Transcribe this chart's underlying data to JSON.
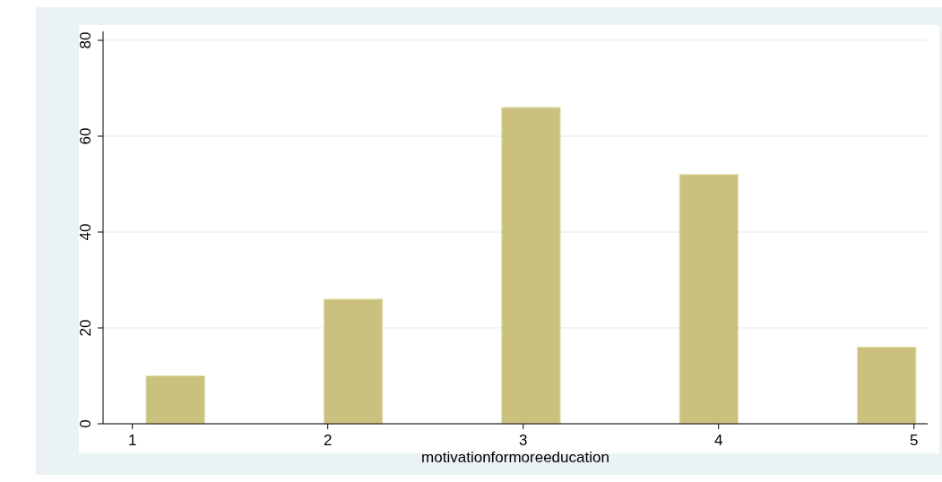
{
  "chart_data": {
    "type": "bar",
    "xlabel": "motivationformoreeducation",
    "x": [
      1.22,
      2.13,
      3.04,
      3.95,
      4.86
    ],
    "values": [
      10,
      26,
      66,
      52,
      16
    ],
    "color": "#cbc17f",
    "xlim": [
      0.85,
      5.07
    ],
    "xticks": [
      1,
      2,
      3,
      4,
      5
    ],
    "ylim": [
      0,
      80
    ],
    "yticks": [
      0,
      20,
      40,
      60,
      80
    ],
    "grid": "y"
  }
}
